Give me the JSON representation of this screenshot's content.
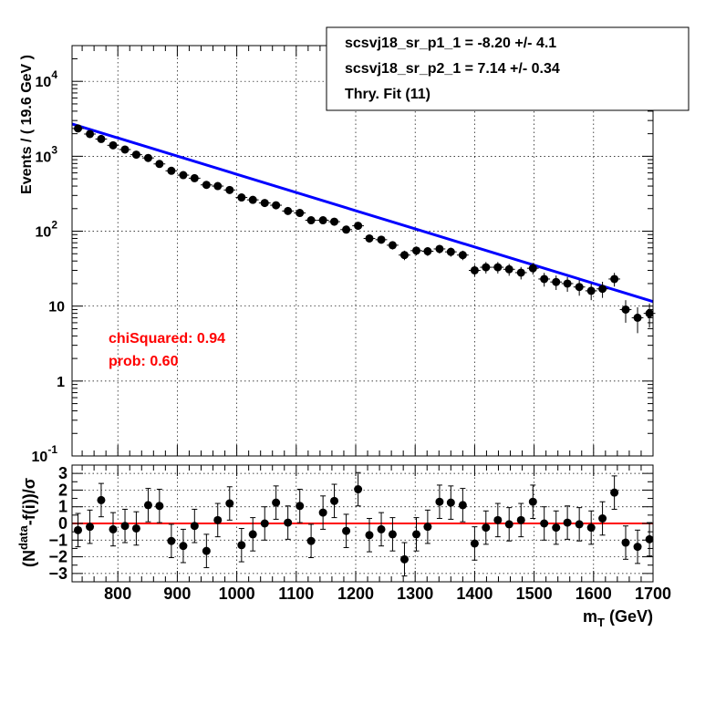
{
  "legend": {
    "lines": [
      "scsvj18_sr_p1_1 = -8.20 +/- 4.1",
      "scsvj18_sr_p2_1 =  7.14 +/- 0.34",
      "Thry. Fit (11)"
    ]
  },
  "stats": {
    "chi": "chiSquared: 0.94",
    "prob": "prob: 0.60",
    "color": "#ff0000"
  },
  "colors": {
    "fit": "#0000ff",
    "zero_line": "#ff0000",
    "points": "#000000"
  },
  "chart_data": [
    {
      "type": "scatter",
      "ylabel": "Events / ( 19.6 GeV )",
      "yscale": "log",
      "ylim": [
        0.1,
        30000
      ],
      "xlim": [
        723,
        1700
      ],
      "grid": true,
      "yticks": [
        {
          "value": 0.1,
          "base": "10",
          "exp": "-1"
        },
        {
          "value": 1,
          "base": "1",
          "exp": ""
        },
        {
          "value": 10,
          "base": "10",
          "exp": ""
        },
        {
          "value": 100,
          "base": "10",
          "exp": "2"
        },
        {
          "value": 1000,
          "base": "10",
          "exp": "3"
        },
        {
          "value": 10000,
          "base": "10",
          "exp": "4"
        }
      ],
      "x": [
        733,
        753,
        772,
        792,
        812,
        831,
        851,
        870,
        890,
        910,
        929,
        949,
        968,
        988,
        1008,
        1027,
        1047,
        1066,
        1086,
        1106,
        1125,
        1145,
        1164,
        1184,
        1204,
        1223,
        1243,
        1262,
        1282,
        1302,
        1321,
        1341,
        1360,
        1380,
        1400,
        1419,
        1439,
        1458,
        1478,
        1498,
        1517,
        1537,
        1556,
        1576,
        1596,
        1615,
        1635,
        1654,
        1674,
        1694
      ],
      "values": [
        2350,
        1980,
        1700,
        1400,
        1230,
        1050,
        950,
        790,
        640,
        560,
        510,
        415,
        400,
        355,
        282,
        262,
        238,
        222,
        186,
        175,
        140,
        140,
        134,
        105,
        118,
        80,
        77,
        65,
        48,
        55,
        54,
        58,
        53,
        48,
        30,
        33,
        33,
        31,
        28,
        32,
        23,
        21,
        20,
        18,
        16,
        17,
        23,
        9,
        7,
        8
      ],
      "fit": {
        "name": "Thry. Fit (11)",
        "x": [
          723,
          1700
        ],
        "y": [
          2700,
          11.5
        ]
      }
    },
    {
      "type": "scatter",
      "xlabel": "m_T (GeV)",
      "ylabel": "(N^data-f(i))/σ",
      "ylim": [
        -3.5,
        3.5
      ],
      "xlim": [
        723,
        1700
      ],
      "grid": true,
      "xticks": [
        800,
        900,
        1000,
        1100,
        1200,
        1300,
        1400,
        1500,
        1600,
        1700
      ],
      "yticks": [
        -3,
        -2,
        -1,
        0,
        1,
        2,
        3
      ],
      "x": [
        733,
        753,
        772,
        792,
        812,
        831,
        851,
        870,
        890,
        910,
        929,
        949,
        968,
        988,
        1008,
        1027,
        1047,
        1066,
        1086,
        1106,
        1125,
        1145,
        1164,
        1184,
        1204,
        1223,
        1243,
        1262,
        1282,
        1302,
        1321,
        1341,
        1360,
        1380,
        1400,
        1419,
        1439,
        1458,
        1478,
        1498,
        1517,
        1537,
        1556,
        1576,
        1596,
        1615,
        1635,
        1654,
        1674,
        1694
      ],
      "values": [
        -0.4,
        -0.2,
        1.4,
        -0.35,
        -0.15,
        -0.3,
        1.1,
        1.05,
        -1.05,
        -1.35,
        -0.15,
        -1.65,
        0.2,
        1.2,
        -1.3,
        -0.65,
        0.0,
        1.25,
        0.05,
        1.05,
        -1.05,
        0.65,
        1.35,
        -0.45,
        2.05,
        -0.7,
        -0.35,
        -0.65,
        -2.15,
        -0.65,
        -0.2,
        1.3,
        1.25,
        1.1,
        -1.2,
        -0.25,
        0.2,
        -0.05,
        0.2,
        1.3,
        0.0,
        -0.25,
        0.05,
        -0.05,
        -0.25,
        0.3,
        1.85,
        -1.15,
        -1.4,
        -0.95
      ]
    }
  ]
}
